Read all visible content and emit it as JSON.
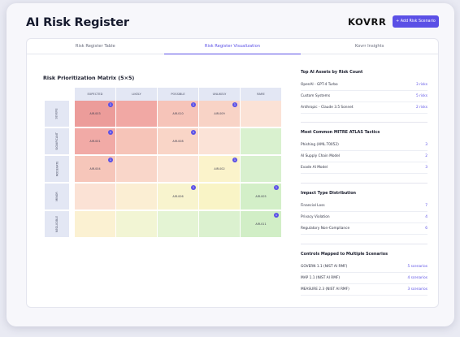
{
  "header": {
    "title": "AI Risk Register",
    "logo": "KOVRR",
    "add_button": "+ Add Risk Scenario"
  },
  "tabs": [
    {
      "label": "Risk Register Table",
      "active": false
    },
    {
      "label": "Risk Register Visualization",
      "active": true
    },
    {
      "label": "Kovrr Insights",
      "active": false
    }
  ],
  "matrix": {
    "title": "Risk Prioritization Matrix (5×5)",
    "columns": [
      "EXPECTED",
      "LIKELY",
      "POSSIBLE",
      "UNLIKELY",
      "RARE"
    ],
    "rows": [
      "SEVERE",
      "SIGNIFICANT",
      "MODERATE",
      "MINOR",
      "NEGLIGIBLE"
    ],
    "cells": [
      [
        {
          "color": "#ec9c9a",
          "tag": "AIR-003",
          "count": "1"
        },
        {
          "color": "#f1a8a4",
          "tag": "",
          "count": ""
        },
        {
          "color": "#f6c4b9",
          "tag": "AIR-010",
          "count": "1"
        },
        {
          "color": "#f8d3c6",
          "tag": "AIR-009",
          "count": "1"
        },
        {
          "color": "#fbe2d6",
          "tag": "",
          "count": ""
        }
      ],
      [
        {
          "color": "#f1aaa6",
          "tag": "AIR-001",
          "count": "1"
        },
        {
          "color": "#f6c4b8",
          "tag": "",
          "count": ""
        },
        {
          "color": "#f9d5c7",
          "tag": "AIR-008",
          "count": "1"
        },
        {
          "color": "#fbe3d7",
          "tag": "",
          "count": ""
        },
        {
          "color": "#d9f1cf",
          "tag": "",
          "count": ""
        }
      ],
      [
        {
          "color": "#f6c6ba",
          "tag": "AIR-004",
          "count": "1"
        },
        {
          "color": "#f9d6c9",
          "tag": "",
          "count": ""
        },
        {
          "color": "#fbe4d8",
          "tag": "",
          "count": ""
        },
        {
          "color": "#fbf3cb",
          "tag": "AIR-002",
          "count": "1"
        },
        {
          "color": "#d8f0ce",
          "tag": "",
          "count": ""
        }
      ],
      [
        {
          "color": "#fbe2d5",
          "tag": "",
          "count": ""
        },
        {
          "color": "#fbeed3",
          "tag": "",
          "count": ""
        },
        {
          "color": "#f8f4ce",
          "tag": "AIR-006",
          "count": "1"
        },
        {
          "color": "#f9f4c6",
          "tag": "",
          "count": ""
        },
        {
          "color": "#d3efc8",
          "tag": "AIR-005",
          "count": "1"
        }
      ],
      [
        {
          "color": "#fbf1d2",
          "tag": "",
          "count": ""
        },
        {
          "color": "#f2f5d4",
          "tag": "",
          "count": ""
        },
        {
          "color": "#e4f4d4",
          "tag": "",
          "count": ""
        },
        {
          "color": "#dbf1cf",
          "tag": "",
          "count": ""
        },
        {
          "color": "#d1eec6",
          "tag": "AIR-011",
          "count": "1"
        }
      ]
    ]
  },
  "side": {
    "sections": [
      {
        "title": "Top AI Assets by Risk Count",
        "rows": [
          {
            "label": "OpenAI - GPT-4 Turbo",
            "value": "3 risks"
          },
          {
            "label": "Custom Systems",
            "value": "5 risks"
          },
          {
            "label": "Anthropic - Claude 3.5 Sonnet",
            "value": "2 risks"
          }
        ]
      },
      {
        "title": "Most Common MITRE ATLAS Tactics",
        "rows": [
          {
            "label": "Phishing (AML.T0052)",
            "value": "3"
          },
          {
            "label": "AI Supply Chain Model",
            "value": "2"
          },
          {
            "label": "Evade AI Model",
            "value": "3"
          }
        ]
      },
      {
        "title": "Impact Type Distribution",
        "rows": [
          {
            "label": "Financial Loss",
            "value": "7"
          },
          {
            "label": "Privacy Violation",
            "value": "4"
          },
          {
            "label": "Regulatory Non-Compliance",
            "value": "6"
          }
        ]
      },
      {
        "title": "Controls Mapped to Multiple Scenarios",
        "rows": [
          {
            "label": "GOVERN 1.1 (NIST AI RMF)",
            "value": "5 scenarios"
          },
          {
            "label": "MAP 1.1 (NIST AI RMF)",
            "value": "4 scenarios"
          },
          {
            "label": "MEASURE 2.3 (NIST AI RMF)",
            "value": "3 scenarios"
          }
        ]
      }
    ]
  },
  "colors": {
    "accent": "#5b50e6",
    "header_bg": "#e3e7f4"
  }
}
